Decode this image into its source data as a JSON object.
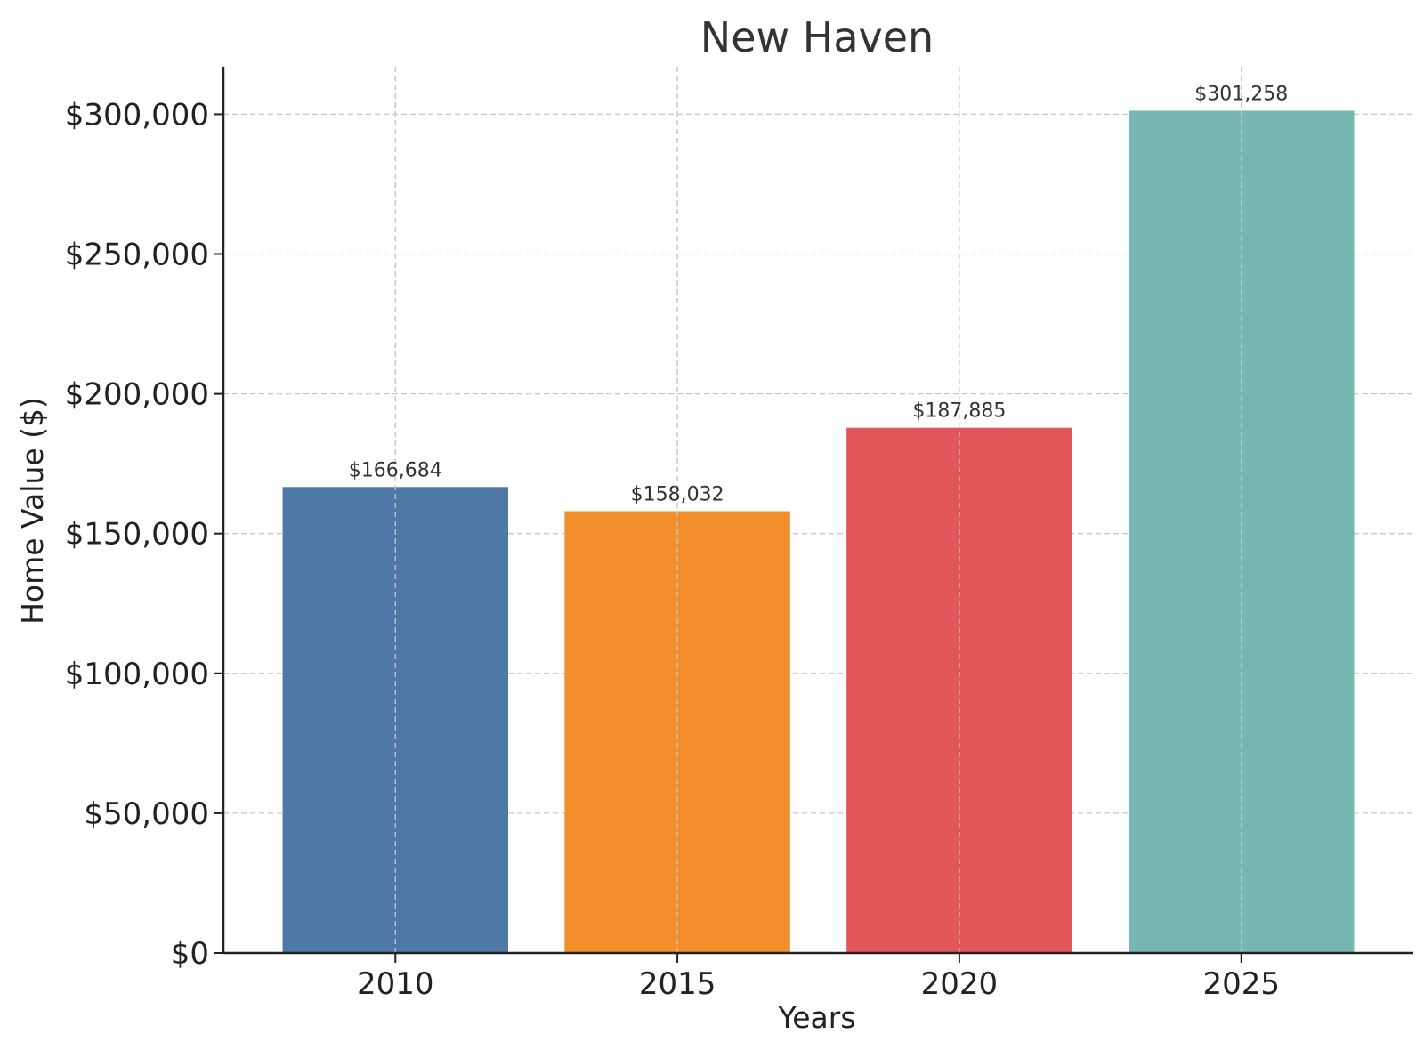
{
  "chart_data": {
    "type": "bar",
    "title": "New Haven",
    "xlabel": "Years",
    "ylabel": "Home Value ($)",
    "categories": [
      "2010",
      "2015",
      "2020",
      "2025"
    ],
    "values": [
      166684,
      158032,
      187885,
      301258
    ],
    "data_labels": [
      "$166,684",
      "$158,032",
      "$187,885",
      "$301,258"
    ],
    "colors": [
      "#4e79a7",
      "#f28e2b",
      "#e15759",
      "#76b7b2"
    ],
    "ylim": [
      0,
      317000
    ],
    "yticks": [
      0,
      50000,
      100000,
      150000,
      200000,
      250000,
      300000
    ],
    "ytick_labels": [
      "$0",
      "$50,000",
      "$100,000",
      "$150,000",
      "$200,000",
      "$250,000",
      "$300,000"
    ],
    "grid": true
  }
}
